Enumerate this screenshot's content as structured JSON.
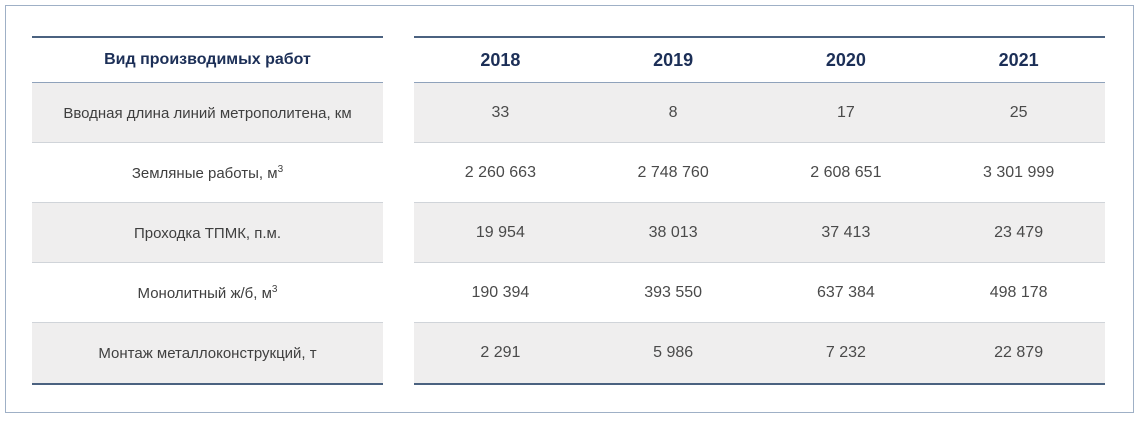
{
  "table": {
    "header_label": "Вид производимых работ",
    "years": [
      "2018",
      "2019",
      "2020",
      "2021"
    ],
    "rows": [
      {
        "label": "Вводная длина линий метрополитена, км",
        "unit_sup": "",
        "values": [
          "33",
          "8",
          "17",
          "25"
        ]
      },
      {
        "label": "Земляные работы, м",
        "unit_sup": "3",
        "values": [
          "2 260 663",
          "2 748 760",
          "2 608 651",
          "3 301 999"
        ]
      },
      {
        "label": "Проходка ТПМК, п.м.",
        "unit_sup": "",
        "values": [
          "19 954",
          "38 013",
          "37 413",
          "23 479"
        ]
      },
      {
        "label": "Монолитный ж/б, м",
        "unit_sup": "3",
        "values": [
          "190 394",
          "393 550",
          "637 384",
          "498 178"
        ]
      },
      {
        "label": "Монтаж металлоконструкций, т",
        "unit_sup": "",
        "values": [
          "2 291",
          "5 986",
          "7 232",
          "22 879"
        ]
      }
    ]
  },
  "colors": {
    "header_text": "#1c2f57",
    "rule": "#4b6280",
    "shade": "#efeeee",
    "frame": "#9fb0c6"
  }
}
